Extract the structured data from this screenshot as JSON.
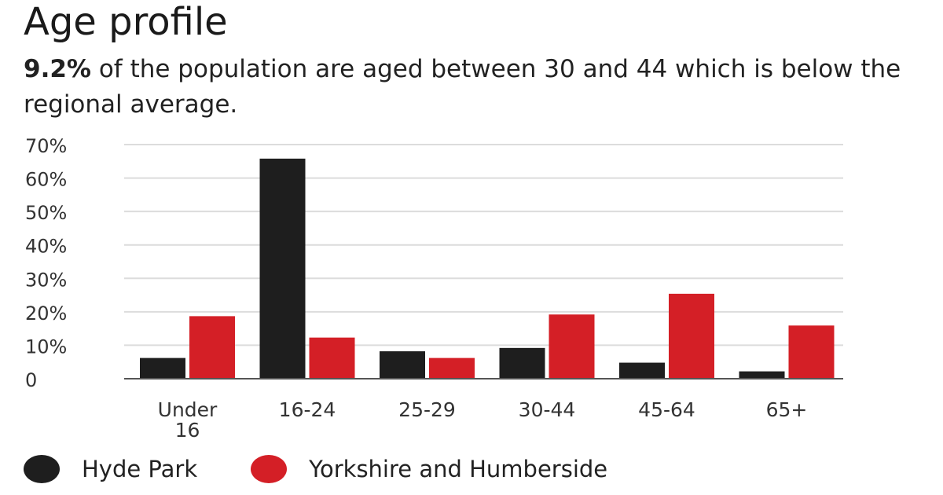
{
  "header": {
    "title": "Age profile",
    "subtitle_highlight": "9.2%",
    "subtitle_rest": " of the population are aged between 30 and 44 which is below the regional average."
  },
  "chart_data": {
    "type": "bar",
    "categories": [
      [
        "Under",
        "16"
      ],
      [
        "16-24"
      ],
      [
        "25-29"
      ],
      [
        "30-44"
      ],
      [
        "45-64"
      ],
      [
        "65+"
      ]
    ],
    "series": [
      {
        "name": "Hyde Park",
        "color": "#1e1e1e",
        "values": [
          6.2,
          65.8,
          8.2,
          9.2,
          4.8,
          2.2
        ]
      },
      {
        "name": "Yorkshire and Humberside",
        "color": "#d41f26",
        "values": [
          18.7,
          12.3,
          6.2,
          19.2,
          25.4,
          15.9
        ]
      }
    ],
    "ylim": [
      0,
      70
    ],
    "yticks": [
      0,
      10,
      20,
      30,
      40,
      50,
      60,
      70
    ],
    "ytick_labels": [
      "0",
      "10%",
      "20%",
      "30%",
      "40%",
      "50%",
      "60%",
      "70%"
    ],
    "grid": true,
    "legend": "bottom-left"
  }
}
